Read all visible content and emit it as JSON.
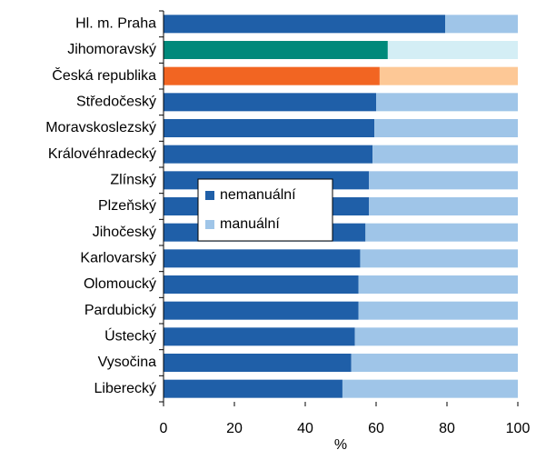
{
  "chart_data": {
    "type": "stacked-barh",
    "categories": [
      "Hl. m. Praha",
      "Jihomoravský",
      "Česká republika",
      "Středočeský",
      "Moravskoslezský",
      "Královéhradecký",
      "Zlínský",
      "Plzeňský",
      "Jihočeský",
      "Karlovarský",
      "Olomoucký",
      "Pardubický",
      "Ústecký",
      "Vysočina",
      "Liberecký"
    ],
    "series": [
      {
        "name": "nemanuální",
        "color": "#1f5fa8",
        "colors": [
          "#1f5fa8",
          "#00897b",
          "#f26522",
          "#1f5fa8",
          "#1f5fa8",
          "#1f5fa8",
          "#1f5fa8",
          "#1f5fa8",
          "#1f5fa8",
          "#1f5fa8",
          "#1f5fa8",
          "#1f5fa8",
          "#1f5fa8",
          "#1f5fa8",
          "#1f5fa8"
        ],
        "values": [
          79.5,
          63.3,
          61,
          60,
          59.5,
          59,
          58,
          58,
          57,
          55.5,
          55,
          55,
          54,
          53,
          50.5
        ]
      },
      {
        "name": "manuální",
        "color": "#9fc5e8",
        "colors": [
          "#9fc5e8",
          "#d4eef5",
          "#fdc896",
          "#9fc5e8",
          "#9fc5e8",
          "#9fc5e8",
          "#9fc5e8",
          "#9fc5e8",
          "#9fc5e8",
          "#9fc5e8",
          "#9fc5e8",
          "#9fc5e8",
          "#9fc5e8",
          "#9fc5e8",
          "#9fc5e8"
        ],
        "values": [
          20.5,
          36.7,
          39,
          40,
          40.5,
          41,
          42,
          42,
          43,
          44.5,
          45,
          45,
          46,
          47,
          49.5
        ]
      }
    ],
    "xlabel": "%",
    "xlim": [
      0,
      100
    ],
    "xticks": [
      0,
      20,
      40,
      60,
      80,
      100
    ],
    "legend": "center-left"
  }
}
